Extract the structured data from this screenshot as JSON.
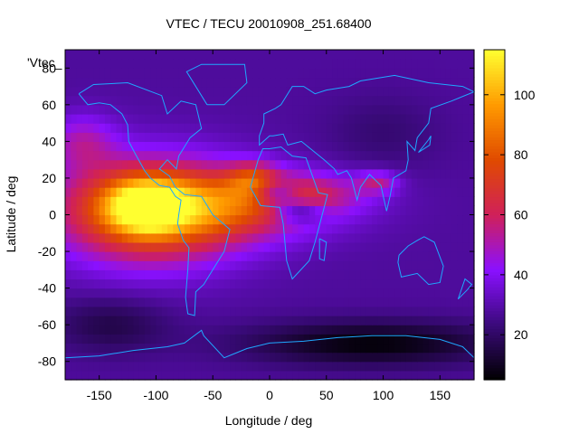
{
  "chart_data": {
    "type": "heatmap",
    "title": "VTEC / TECU 20010908_251.68400",
    "xlabel": "Longitude / deg",
    "ylabel": "Latitude / deg",
    "key_label": "'Vtec_",
    "xlim": [
      -180,
      180
    ],
    "ylim": [
      -90,
      90
    ],
    "xticks": [
      -150,
      -100,
      -50,
      0,
      50,
      100,
      150
    ],
    "yticks": [
      -80,
      -60,
      -40,
      -20,
      0,
      20,
      40,
      60,
      80
    ],
    "colorbar": {
      "min": 5,
      "max": 115,
      "ticks": [
        20,
        40,
        60,
        80,
        100
      ]
    },
    "palette": [
      "#000000",
      "#3a0a7a",
      "#8a10ff",
      "#d0205a",
      "#e04a00",
      "#ff9a00",
      "#ffff30"
    ],
    "background_vtec": 28,
    "features": [
      {
        "lon": -105,
        "lat": 2,
        "rlon": 80,
        "rlat": 28,
        "vtec": 58
      },
      {
        "lon": -40,
        "lat": 5,
        "rlon": 95,
        "rlat": 18,
        "vtec": 35
      },
      {
        "lon": -110,
        "lat": 5,
        "rlon": 32,
        "rlat": 14,
        "vtec": 45
      },
      {
        "lon": -15,
        "lat": 20,
        "rlon": 22,
        "rlat": 9,
        "vtec": 28
      },
      {
        "lon": 30,
        "lat": 12,
        "rlon": 55,
        "rlat": 11,
        "vtec": 22
      },
      {
        "lon": 5,
        "lat": 12,
        "rlon": 20,
        "rlat": 7,
        "vtec": -30
      },
      {
        "lon": 25,
        "lat": 2,
        "rlon": 22,
        "rlat": 6,
        "vtec": -28
      },
      {
        "lon": -165,
        "lat": 40,
        "rlon": 30,
        "rlat": 15,
        "vtec": 20
      },
      {
        "lon": 95,
        "lat": 18,
        "rlon": 18,
        "rlat": 6,
        "vtec": 22
      },
      {
        "lon": 90,
        "lat": -70,
        "rlon": 110,
        "rlat": 12,
        "vtec": -22
      },
      {
        "lon": -140,
        "lat": -60,
        "rlon": 50,
        "rlat": 15,
        "vtec": -12
      },
      {
        "lon": 100,
        "lat": 45,
        "rlon": 50,
        "rlat": 20,
        "vtec": -6
      }
    ],
    "coastlines": [
      [
        [
          -168,
          66
        ],
        [
          -160,
          60
        ],
        [
          -150,
          61
        ],
        [
          -140,
          60
        ],
        [
          -130,
          55
        ],
        [
          -125,
          49
        ],
        [
          -124,
          40
        ],
        [
          -118,
          33
        ],
        [
          -110,
          24
        ],
        [
          -105,
          20
        ],
        [
          -97,
          16
        ],
        [
          -88,
          15
        ],
        [
          -83,
          10
        ],
        [
          -78,
          8
        ],
        [
          -80,
          0
        ],
        [
          -81,
          -5
        ],
        [
          -76,
          -14
        ],
        [
          -71,
          -18
        ],
        [
          -72,
          -30
        ],
        [
          -74,
          -45
        ],
        [
          -72,
          -54
        ],
        [
          -66,
          -55
        ],
        [
          -65,
          -42
        ],
        [
          -58,
          -38
        ],
        [
          -48,
          -28
        ],
        [
          -40,
          -20
        ],
        [
          -35,
          -8
        ],
        [
          -50,
          0
        ],
        [
          -60,
          10
        ],
        [
          -75,
          11
        ],
        [
          -83,
          15
        ],
        [
          -88,
          21
        ],
        [
          -97,
          25
        ],
        [
          -90,
          30
        ],
        [
          -82,
          25
        ],
        [
          -80,
          32
        ],
        [
          -70,
          42
        ],
        [
          -60,
          47
        ],
        [
          -65,
          60
        ],
        [
          -78,
          62
        ],
        [
          -90,
          55
        ],
        [
          -95,
          65
        ],
        [
          -125,
          72
        ],
        [
          -155,
          71
        ],
        [
          -168,
          66
        ]
      ],
      [
        [
          -55,
          60
        ],
        [
          -40,
          60
        ],
        [
          -20,
          72
        ],
        [
          -22,
          82
        ],
        [
          -60,
          82
        ],
        [
          -73,
          78
        ],
        [
          -55,
          60
        ]
      ],
      [
        [
          -17,
          15
        ],
        [
          -10,
          30
        ],
        [
          -6,
          36
        ],
        [
          0,
          36
        ],
        [
          10,
          37
        ],
        [
          20,
          32
        ],
        [
          32,
          31
        ],
        [
          43,
          12
        ],
        [
          51,
          11
        ],
        [
          40,
          -15
        ],
        [
          35,
          -25
        ],
        [
          20,
          -35
        ],
        [
          15,
          -25
        ],
        [
          12,
          -5
        ],
        [
          9,
          4
        ],
        [
          -8,
          5
        ],
        [
          -17,
          15
        ]
      ],
      [
        [
          -9,
          43
        ],
        [
          -9,
          38
        ],
        [
          0,
          43
        ],
        [
          3,
          43
        ],
        [
          12,
          44
        ],
        [
          16,
          38
        ],
        [
          28,
          40
        ],
        [
          36,
          36
        ],
        [
          48,
          30
        ],
        [
          57,
          25
        ],
        [
          60,
          22
        ],
        [
          68,
          24
        ],
        [
          72,
          20
        ],
        [
          77,
          8
        ],
        [
          80,
          15
        ],
        [
          88,
          22
        ],
        [
          98,
          16
        ],
        [
          103,
          2
        ],
        [
          106,
          10
        ],
        [
          109,
          20
        ],
        [
          120,
          24
        ],
        [
          122,
          30
        ],
        [
          121,
          40
        ],
        [
          128,
          35
        ],
        [
          130,
          42
        ],
        [
          140,
          50
        ],
        [
          142,
          58
        ],
        [
          160,
          62
        ],
        [
          180,
          67
        ],
        [
          170,
          70
        ],
        [
          140,
          72
        ],
        [
          110,
          76
        ],
        [
          80,
          73
        ],
        [
          70,
          70
        ],
        [
          50,
          68
        ],
        [
          40,
          66
        ],
        [
          30,
          70
        ],
        [
          20,
          70
        ],
        [
          10,
          60
        ],
        [
          5,
          58
        ],
        [
          -5,
          55
        ],
        [
          -5,
          50
        ],
        [
          -9,
          43
        ]
      ],
      [
        [
          114,
          -22
        ],
        [
          113,
          -26
        ],
        [
          116,
          -34
        ],
        [
          130,
          -32
        ],
        [
          140,
          -38
        ],
        [
          150,
          -37
        ],
        [
          153,
          -28
        ],
        [
          145,
          -15
        ],
        [
          136,
          -12
        ],
        [
          130,
          -14
        ],
        [
          122,
          -17
        ],
        [
          114,
          -22
        ]
      ],
      [
        [
          -180,
          -78
        ],
        [
          -150,
          -77
        ],
        [
          -120,
          -74
        ],
        [
          -90,
          -72
        ],
        [
          -75,
          -70
        ],
        [
          -60,
          -63
        ],
        [
          -58,
          -66
        ],
        [
          -40,
          -78
        ],
        [
          -20,
          -73
        ],
        [
          0,
          -70
        ],
        [
          30,
          -69
        ],
        [
          60,
          -67
        ],
        [
          90,
          -66
        ],
        [
          120,
          -66
        ],
        [
          150,
          -68
        ],
        [
          170,
          -72
        ],
        [
          180,
          -78
        ]
      ],
      [
        [
          44,
          -13
        ],
        [
          50,
          -15
        ],
        [
          48,
          -25
        ],
        [
          44,
          -24
        ],
        [
          44,
          -13
        ]
      ],
      [
        [
          166,
          -46
        ],
        [
          174,
          -41
        ],
        [
          178,
          -38
        ],
        [
          172,
          -35
        ],
        [
          166,
          -46
        ]
      ],
      [
        [
          131,
          34
        ],
        [
          141,
          38
        ],
        [
          142,
          43
        ],
        [
          140,
          41
        ],
        [
          131,
          34
        ]
      ]
    ]
  }
}
